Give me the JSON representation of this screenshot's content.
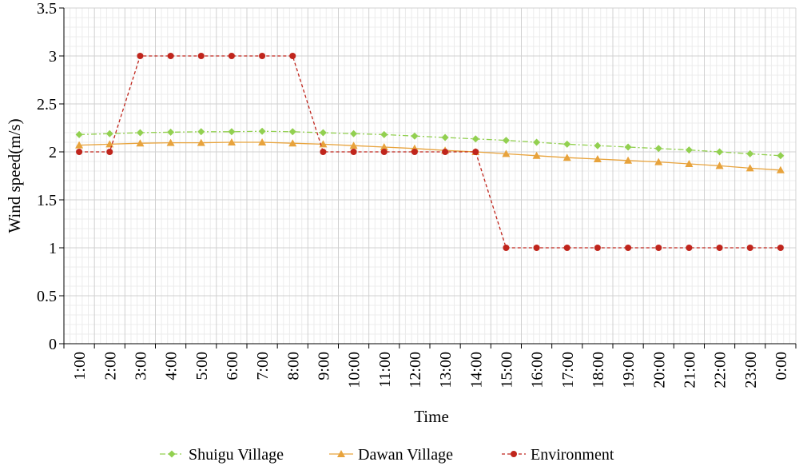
{
  "chart_data": {
    "type": "line",
    "title": "",
    "xlabel": "Time",
    "ylabel": "Wind speed(m/s)",
    "ylim": [
      0,
      3.5
    ],
    "ytick_step": 0.5,
    "grid": true,
    "legend_position": "bottom",
    "categories": [
      "1:00",
      "2:00",
      "3:00",
      "4:00",
      "5:00",
      "6:00",
      "7:00",
      "8:00",
      "9:00",
      "10:00",
      "11:00",
      "12:00",
      "13:00",
      "14:00",
      "15:00",
      "16:00",
      "17:00",
      "18:00",
      "19:00",
      "20:00",
      "21:00",
      "22:00",
      "23:00",
      "0:00"
    ],
    "series": [
      {
        "name": "Shuigu Village",
        "color": "#92D050",
        "marker": "diamond",
        "line": "dash-dot",
        "values": [
          2.18,
          2.19,
          2.2,
          2.205,
          2.21,
          2.21,
          2.215,
          2.21,
          2.2,
          2.19,
          2.18,
          2.165,
          2.15,
          2.135,
          2.12,
          2.1,
          2.08,
          2.065,
          2.05,
          2.035,
          2.02,
          2.0,
          1.98,
          1.96
        ]
      },
      {
        "name": "Dawan Village",
        "color": "#E8A33C",
        "marker": "triangle",
        "line": "solid",
        "values": [
          2.07,
          2.08,
          2.09,
          2.095,
          2.095,
          2.1,
          2.1,
          2.09,
          2.08,
          2.065,
          2.05,
          2.035,
          2.015,
          2.0,
          1.98,
          1.96,
          1.94,
          1.925,
          1.91,
          1.895,
          1.875,
          1.855,
          1.83,
          1.81
        ]
      },
      {
        "name": "Environment",
        "color": "#C0251C",
        "marker": "circle",
        "line": "dash",
        "values": [
          2,
          2,
          3,
          3,
          3,
          3,
          3,
          3,
          2,
          2,
          2,
          2,
          2,
          2,
          1,
          1,
          1,
          1,
          1,
          1,
          1,
          1,
          1,
          1
        ]
      }
    ]
  }
}
